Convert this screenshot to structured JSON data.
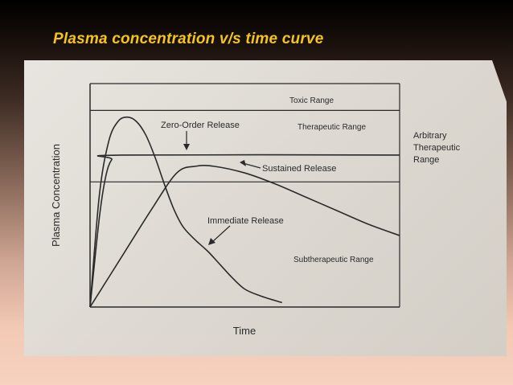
{
  "slide": {
    "title": "Plasma concentration v/s time curve"
  },
  "chart_data": {
    "type": "line",
    "xlabel": "Time",
    "ylabel": "Plasma Concentration",
    "xlim": [
      0,
      100
    ],
    "ylim": [
      0,
      100
    ],
    "grid": false,
    "ranges": {
      "toxic_label": "Toxic Range",
      "therapeutic_label": "Therapeutic Range",
      "subtherapeutic_label": "Subtherapeutic Range",
      "arbitrary_label": [
        "Arbitrary",
        "Therapeutic",
        "Range"
      ],
      "toxic_min": 88,
      "therapeutic_min": 56
    },
    "series": [
      {
        "name": "Zero-Order Release",
        "x": [
          0,
          3,
          5,
          7,
          10,
          100
        ],
        "y": [
          0,
          40,
          58,
          66,
          68,
          68
        ]
      },
      {
        "name": "Sustained Release",
        "x": [
          0,
          10,
          20,
          28,
          34,
          40,
          50,
          60,
          70,
          80,
          90,
          100
        ],
        "y": [
          0,
          22,
          44,
          60,
          63,
          63,
          60,
          55,
          49,
          43,
          37,
          32
        ]
      },
      {
        "name": "Immediate Release",
        "x": [
          0,
          3,
          6,
          9,
          12,
          15,
          18,
          21,
          24,
          27,
          30,
          34,
          38,
          42,
          46,
          50,
          55,
          62
        ],
        "y": [
          0,
          50,
          74,
          83,
          85,
          83,
          77,
          67,
          55,
          44,
          36,
          30,
          25,
          19,
          13,
          8,
          5,
          2
        ]
      }
    ]
  }
}
